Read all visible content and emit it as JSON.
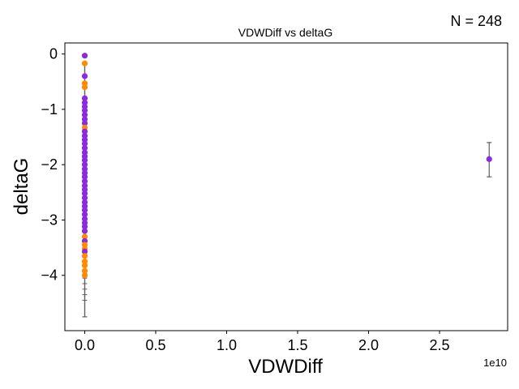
{
  "chart_data": {
    "type": "scatter",
    "title": "VDWDiff vs deltaG",
    "annotation": "N = 248",
    "xlabel": "VDWDiff",
    "ylabel": "deltaG",
    "x_offset_label": "1e10",
    "xlim": [
      -1400000000.0,
      29800000000.0
    ],
    "ylim": [
      -5.0,
      0.2
    ],
    "x_ticks": [
      0,
      5000000000.0,
      10000000000.0,
      15000000000.0,
      20000000000.0,
      25000000000.0
    ],
    "x_tick_labels": [
      "0.0",
      "0.5",
      "1.0",
      "1.5",
      "2.0",
      "2.5"
    ],
    "y_ticks": [
      0,
      -1,
      -2,
      -3,
      -4
    ],
    "y_tick_labels": [
      "0",
      "−1",
      "−2",
      "−3",
      "−4"
    ],
    "grid": false,
    "colors": {
      "purple": "#8a2be2",
      "orange": "#ff8c00",
      "errorbar": "#606060"
    },
    "points": [
      {
        "x": 0,
        "y": -0.03,
        "color": "purple"
      },
      {
        "x": 0,
        "y": -0.17,
        "color": "orange"
      },
      {
        "x": 0,
        "y": -0.4,
        "color": "purple"
      },
      {
        "x": 0,
        "y": -0.53,
        "color": "orange"
      },
      {
        "x": 0,
        "y": -0.6,
        "color": "orange"
      },
      {
        "x": 0,
        "y": -0.8,
        "color": "purple"
      },
      {
        "x": 0,
        "y": -0.88,
        "color": "purple"
      },
      {
        "x": 0,
        "y": -0.95,
        "color": "purple"
      },
      {
        "x": 0,
        "y": -1.02,
        "color": "purple"
      },
      {
        "x": 0,
        "y": -1.1,
        "color": "purple"
      },
      {
        "x": 0,
        "y": -1.18,
        "color": "purple"
      },
      {
        "x": 0,
        "y": -1.25,
        "color": "purple"
      },
      {
        "x": 0,
        "y": -1.33,
        "color": "orange"
      },
      {
        "x": 0,
        "y": -1.4,
        "color": "purple"
      },
      {
        "x": 0,
        "y": -1.48,
        "color": "purple"
      },
      {
        "x": 0,
        "y": -1.55,
        "color": "purple"
      },
      {
        "x": 0,
        "y": -1.62,
        "color": "purple"
      },
      {
        "x": 0,
        "y": -1.7,
        "color": "purple"
      },
      {
        "x": 0,
        "y": -1.78,
        "color": "purple"
      },
      {
        "x": 0,
        "y": -1.85,
        "color": "purple"
      },
      {
        "x": 0,
        "y": -1.92,
        "color": "purple"
      },
      {
        "x": 0,
        "y": -2.0,
        "color": "purple"
      },
      {
        "x": 0,
        "y": -2.08,
        "color": "purple"
      },
      {
        "x": 0,
        "y": -2.15,
        "color": "purple"
      },
      {
        "x": 0,
        "y": -2.22,
        "color": "purple"
      },
      {
        "x": 0,
        "y": -2.3,
        "color": "purple"
      },
      {
        "x": 0,
        "y": -2.38,
        "color": "purple"
      },
      {
        "x": 0,
        "y": -2.45,
        "color": "purple"
      },
      {
        "x": 0,
        "y": -2.52,
        "color": "purple"
      },
      {
        "x": 0,
        "y": -2.6,
        "color": "purple"
      },
      {
        "x": 0,
        "y": -2.68,
        "color": "purple"
      },
      {
        "x": 0,
        "y": -2.75,
        "color": "purple"
      },
      {
        "x": 0,
        "y": -2.82,
        "color": "purple"
      },
      {
        "x": 0,
        "y": -2.9,
        "color": "purple"
      },
      {
        "x": 0,
        "y": -2.98,
        "color": "purple"
      },
      {
        "x": 0,
        "y": -3.05,
        "color": "purple"
      },
      {
        "x": 0,
        "y": -3.12,
        "color": "purple"
      },
      {
        "x": 0,
        "y": -3.2,
        "color": "purple"
      },
      {
        "x": 0,
        "y": -3.3,
        "color": "orange"
      },
      {
        "x": 0,
        "y": -3.38,
        "color": "purple"
      },
      {
        "x": 0,
        "y": -3.45,
        "color": "orange"
      },
      {
        "x": 0,
        "y": -3.52,
        "color": "orange"
      },
      {
        "x": 0,
        "y": -3.57,
        "color": "purple"
      },
      {
        "x": 0,
        "y": -3.65,
        "color": "orange"
      },
      {
        "x": 0,
        "y": -3.75,
        "color": "orange"
      },
      {
        "x": 0,
        "y": -3.82,
        "color": "orange"
      },
      {
        "x": 0,
        "y": -3.92,
        "color": "orange"
      },
      {
        "x": 0,
        "y": -4.0,
        "color": "orange"
      },
      {
        "x": 28500000000.0,
        "y": -1.9,
        "color": "purple",
        "err_low": -2.22,
        "err_high": -1.6
      }
    ],
    "cluster_errorbar": {
      "x": 0,
      "y_low": -4.75,
      "y_high": -0.15
    }
  }
}
